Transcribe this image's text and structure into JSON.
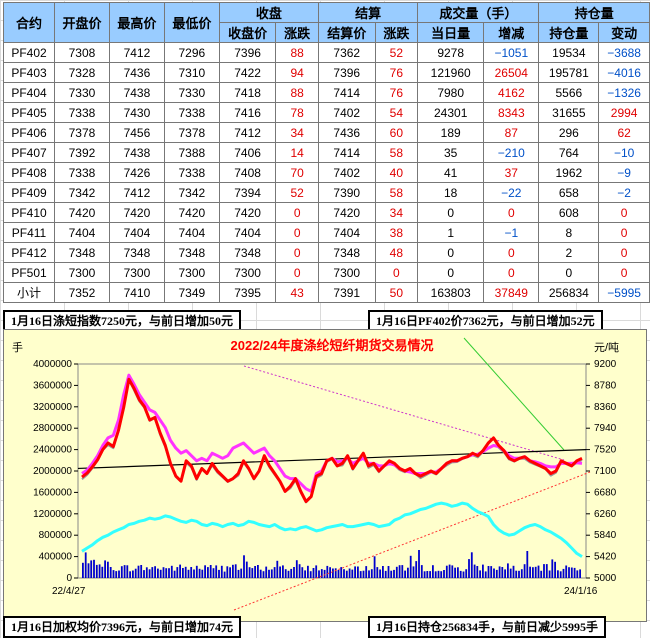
{
  "table": {
    "header_top": [
      "合约",
      "开盘价",
      "最高价",
      "最低价",
      "收盘",
      "",
      "结算",
      "",
      "成交量（手）",
      "",
      "持仓量",
      ""
    ],
    "header_sub": [
      "",
      "",
      "",
      "",
      "收盘价",
      "涨跌",
      "结算价",
      "涨跌",
      "当日量",
      "增减",
      "持仓量",
      "变动"
    ],
    "rows": [
      [
        "PF402",
        "7308",
        "7412",
        "7296",
        "7396",
        "88",
        "7362",
        "52",
        "9278",
        "−1051",
        "19534",
        "−3688"
      ],
      [
        "PF403",
        "7328",
        "7436",
        "7310",
        "7422",
        "94",
        "7396",
        "76",
        "121960",
        "26504",
        "195781",
        "−4016"
      ],
      [
        "PF404",
        "7330",
        "7438",
        "7330",
        "7418",
        "88",
        "7414",
        "76",
        "7980",
        "4162",
        "5566",
        "−1326"
      ],
      [
        "PF405",
        "7338",
        "7430",
        "7338",
        "7416",
        "78",
        "7402",
        "54",
        "24301",
        "8343",
        "31655",
        "2994"
      ],
      [
        "PF406",
        "7378",
        "7456",
        "7378",
        "7412",
        "34",
        "7436",
        "60",
        "189",
        "87",
        "296",
        "62"
      ],
      [
        "PF407",
        "7392",
        "7438",
        "7388",
        "7406",
        "14",
        "7414",
        "58",
        "35",
        "−210",
        "764",
        "−10"
      ],
      [
        "PF408",
        "7338",
        "7426",
        "7338",
        "7408",
        "70",
        "7402",
        "40",
        "41",
        "37",
        "1962",
        "−9"
      ],
      [
        "PF409",
        "7342",
        "7412",
        "7342",
        "7394",
        "52",
        "7390",
        "58",
        "18",
        "−22",
        "658",
        "−2"
      ],
      [
        "PF410",
        "7420",
        "7420",
        "7420",
        "7420",
        "0",
        "7420",
        "34",
        "0",
        "0",
        "608",
        "0"
      ],
      [
        "PF411",
        "7404",
        "7404",
        "7404",
        "7404",
        "0",
        "7404",
        "38",
        "1",
        "−1",
        "8",
        "0"
      ],
      [
        "PF412",
        "7348",
        "7348",
        "7348",
        "7348",
        "0",
        "7348",
        "48",
        "0",
        "0",
        "2",
        "0"
      ],
      [
        "PF501",
        "7300",
        "7300",
        "7300",
        "7300",
        "0",
        "7300",
        "0",
        "0",
        "0",
        "0",
        "0"
      ],
      [
        "小计",
        "7352",
        "7410",
        "7349",
        "7395",
        "43",
        "7391",
        "50",
        "163803",
        "37849",
        "256834",
        "−5995"
      ]
    ]
  },
  "summaries": {
    "index": "1月16日涤短指数7250元，与前日增加50元",
    "pf402": "1月16日PF402价7362元，与前日增加52元",
    "avg": "1月16日加权均价7396元，与前日增加74元",
    "oi": "1月16日持仓256834手，与前日减少5995手"
  },
  "chart_data": {
    "type": "line",
    "title": "2022/24年度涤纶短纤期货交易情况",
    "y_left_unit": "手",
    "y_right_unit": "元/吨",
    "x_start_label": "22/4/27",
    "x_end_label": "24/1/16",
    "y_left_ticks": [
      0,
      400000,
      800000,
      1200000,
      1600000,
      2000000,
      2400000,
      2800000,
      3200000,
      3600000,
      4000000
    ],
    "y_right_ticks": [
      5000,
      5420,
      5840,
      6260,
      6680,
      7100,
      7520,
      7940,
      8360,
      8780,
      9200
    ],
    "ylim_left": [
      0,
      4000000
    ],
    "ylim_right": [
      5000,
      9200
    ],
    "colors": {
      "price": "#ff0000",
      "index": "#ff33ff",
      "settle": "#999999",
      "oi": "#33ffff",
      "volume": "#0000cc",
      "trend": "#000000",
      "aux1": "#cc33cc",
      "aux2": "#ff3333",
      "aux3": "#33cc33"
    },
    "series": [
      {
        "role": "price",
        "values": [
          6980,
          7060,
          7180,
          7320,
          7520,
          7650,
          7580,
          7900,
          8350,
          8900,
          8720,
          8500,
          8360,
          8100,
          8150,
          7850,
          7600,
          7250,
          7000,
          6900,
          7300,
          7200,
          6950,
          7150,
          7050,
          7250,
          7100,
          7000,
          6900,
          6950,
          7050,
          7300,
          7150,
          6950,
          7100,
          7400,
          7200,
          7050,
          6900,
          6700,
          6800,
          6950,
          6700,
          6500,
          6600,
          7000,
          7050,
          7300,
          7350,
          7200,
          7250,
          7400,
          7150,
          7300,
          7450,
          7200,
          7250,
          7100,
          7200,
          7300,
          7250,
          7150,
          7100,
          7150,
          7050,
          7000,
          7050,
          7100,
          7050,
          7150,
          7250,
          7300,
          7300,
          7350,
          7380,
          7450,
          7400,
          7500,
          7650,
          7750,
          7600,
          7500,
          7350,
          7300,
          7350,
          7380,
          7300,
          7250,
          7200,
          7150,
          7050,
          7100,
          7300,
          7250,
          7200,
          7300,
          7350
        ]
      },
      {
        "role": "index",
        "values": [
          7050,
          7120,
          7250,
          7400,
          7600,
          7750,
          7800,
          8100,
          8600,
          8980,
          8800,
          8600,
          8450,
          8300,
          8250,
          8100,
          7950,
          7700,
          7550,
          7450,
          7500,
          7400,
          7300,
          7350,
          7300,
          7450,
          7400,
          7350,
          7400,
          7550,
          7600,
          7650,
          7550,
          7450,
          7500,
          7550,
          7400,
          7300,
          7150,
          7000,
          6950,
          6950,
          6850,
          6750,
          6700,
          7050,
          7100,
          7300,
          7350,
          7280,
          7300,
          7350,
          7250,
          7300,
          7350,
          7250,
          7250,
          7200,
          7200,
          7250,
          7220,
          7150,
          7100,
          7080,
          7050,
          7050,
          7050,
          7080,
          7080,
          7150,
          7250,
          7300,
          7300,
          7350,
          7380,
          7420,
          7430,
          7480,
          7550,
          7600,
          7580,
          7500,
          7400,
          7350,
          7350,
          7380,
          7300,
          7280,
          7250,
          7200,
          7180,
          7180,
          7250,
          7250,
          7250,
          7260,
          7250
        ]
      },
      {
        "role": "oi",
        "values": [
          500000,
          560000,
          620000,
          700000,
          760000,
          800000,
          860000,
          900000,
          940000,
          1000000,
          1020000,
          1060000,
          1080000,
          1120000,
          1100000,
          1120000,
          1160000,
          1140000,
          1100000,
          1060000,
          1040000,
          1080000,
          1060000,
          1000000,
          980000,
          1020000,
          1000000,
          960000,
          1000000,
          1020000,
          980000,
          1000000,
          1060000,
          1040000,
          1000000,
          980000,
          960000,
          1000000,
          940000,
          900000,
          920000,
          900000,
          940000,
          960000,
          920000,
          880000,
          900000,
          940000,
          960000,
          980000,
          1000000,
          960000,
          960000,
          980000,
          1000000,
          1020000,
          1000000,
          960000,
          980000,
          1000000,
          1080000,
          1120000,
          1180000,
          1200000,
          1240000,
          1280000,
          1300000,
          1340000,
          1380000,
          1400000,
          1380000,
          1340000,
          1360000,
          1400000,
          1380000,
          1300000,
          1240000,
          1200000,
          1150000,
          1000000,
          900000,
          840000,
          800000,
          820000,
          880000,
          940000,
          980000,
          1000000,
          960000,
          900000,
          860000,
          800000,
          740000,
          660000,
          560000,
          460000,
          400000
        ]
      }
    ]
  }
}
